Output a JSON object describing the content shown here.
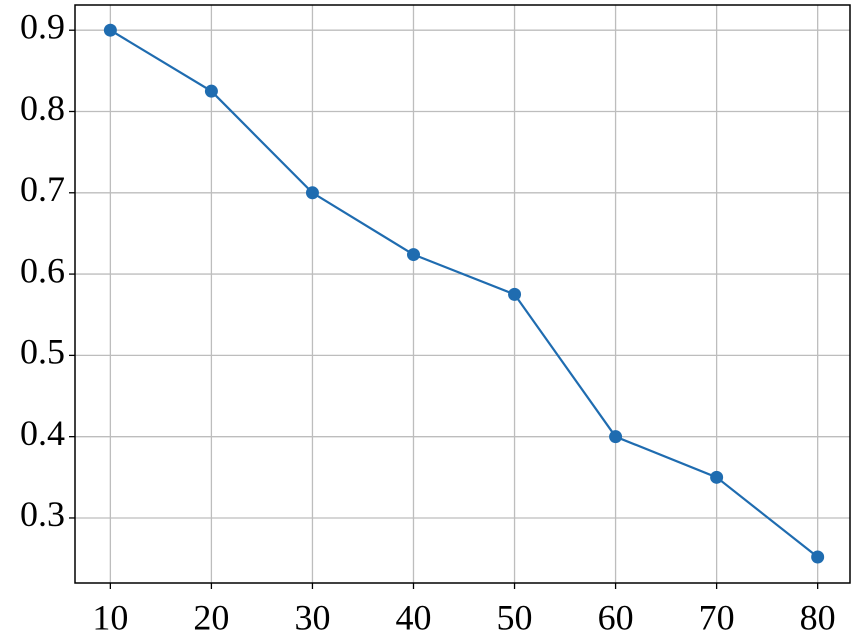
{
  "chart_data": {
    "type": "line",
    "x": [
      10,
      20,
      30,
      40,
      50,
      60,
      70,
      80
    ],
    "series": [
      {
        "name": null,
        "color": "#1f6cb0",
        "values": [
          0.9,
          0.825,
          0.7,
          0.624,
          0.575,
          0.4,
          0.35,
          0.252
        ]
      }
    ],
    "xlim": [
      6.5,
      83.2
    ],
    "ylim": [
      0.22,
      0.931
    ],
    "xticks": [
      10,
      20,
      30,
      40,
      50,
      60,
      70,
      80
    ],
    "yticks": [
      0.3,
      0.4,
      0.5,
      0.6,
      0.7,
      0.8,
      0.9
    ],
    "grid": true
  }
}
